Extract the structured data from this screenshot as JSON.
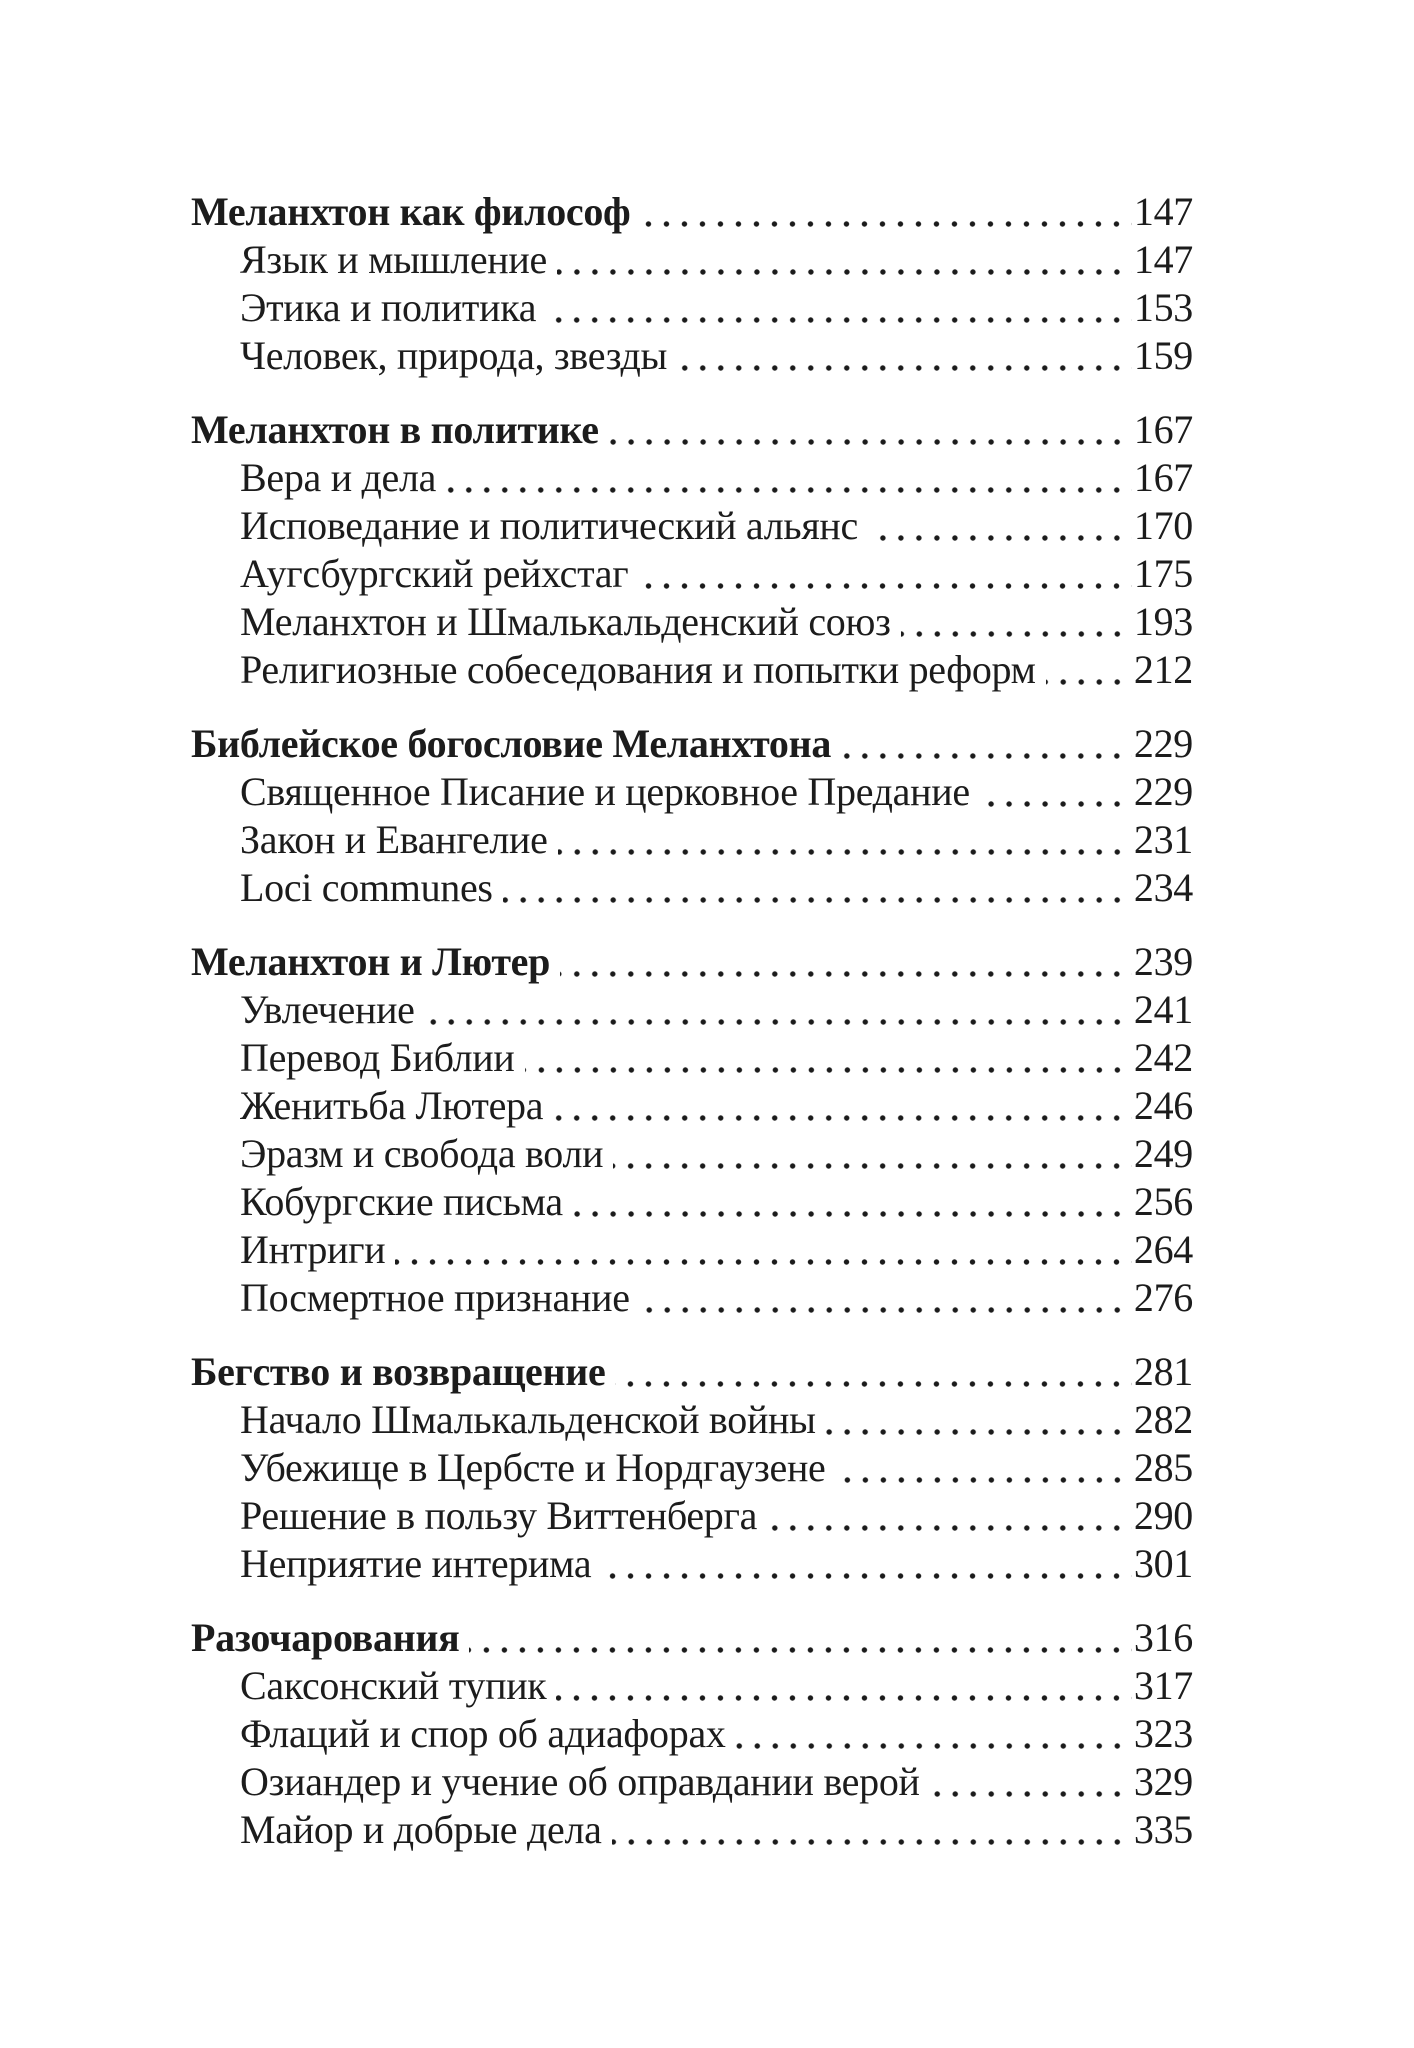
{
  "page": {
    "background": "#ffffff",
    "text_color": "#1c1c1c",
    "dot_leader_color": "#1b1b1b"
  },
  "toc": {
    "sections": [
      {
        "title": "Меланхтон как философ",
        "page": "147",
        "items": [
          {
            "title": "Язык и мышление",
            "page": "147"
          },
          {
            "title": "Этика и политика",
            "page": "153"
          },
          {
            "title": "Человек, природа, звезды",
            "page": "159"
          }
        ]
      },
      {
        "title": "Меланхтон в политике",
        "page": "167",
        "items": [
          {
            "title": "Вера и дела",
            "page": "167"
          },
          {
            "title": "Исповедание и политический альянс",
            "page": "170"
          },
          {
            "title": "Аугсбургский рейхстаг",
            "page": "175"
          },
          {
            "title": "Меланхтон и Шмалькальденский союз",
            "page": "193"
          },
          {
            "title": "Религиозные собеседования и попытки реформ",
            "page": "212"
          }
        ]
      },
      {
        "title": "Библейское богословие Меланхтона",
        "page": "229",
        "items": [
          {
            "title": "Священное Писание и церковное Предание",
            "page": "229"
          },
          {
            "title": "Закон и Евангелие",
            "page": "231"
          },
          {
            "title": "Loci communes",
            "page": "234"
          }
        ]
      },
      {
        "title": "Меланхтон и Лютер",
        "page": "239",
        "items": [
          {
            "title": "Увлечение",
            "page": "241"
          },
          {
            "title": "Перевод Библии",
            "page": "242"
          },
          {
            "title": "Женитьба Лютера",
            "page": "246"
          },
          {
            "title": "Эразм и свобода воли",
            "page": "249"
          },
          {
            "title": "Кобургские письма",
            "page": "256"
          },
          {
            "title": "Интриги",
            "page": "264"
          },
          {
            "title": "Посмертное признание",
            "page": "276"
          }
        ]
      },
      {
        "title": "Бегство и возвращение",
        "page": "281",
        "items": [
          {
            "title": "Начало Шмалькальденской войны",
            "page": "282"
          },
          {
            "title": "Убежище в Цербсте и Нордгаузене",
            "page": "285"
          },
          {
            "title": "Решение в пользу Виттенберга",
            "page": "290"
          },
          {
            "title": "Неприятие интерима",
            "page": "301"
          }
        ]
      },
      {
        "title": "Разочарования",
        "page": "316",
        "items": [
          {
            "title": "Саксонский тупик",
            "page": "317"
          },
          {
            "title": "Флаций и спор об адиафорах",
            "page": "323"
          },
          {
            "title": "Озиандер и учение об оправдании верой",
            "page": "329"
          },
          {
            "title": "Майор и добрые дела",
            "page": "335"
          }
        ]
      }
    ]
  }
}
